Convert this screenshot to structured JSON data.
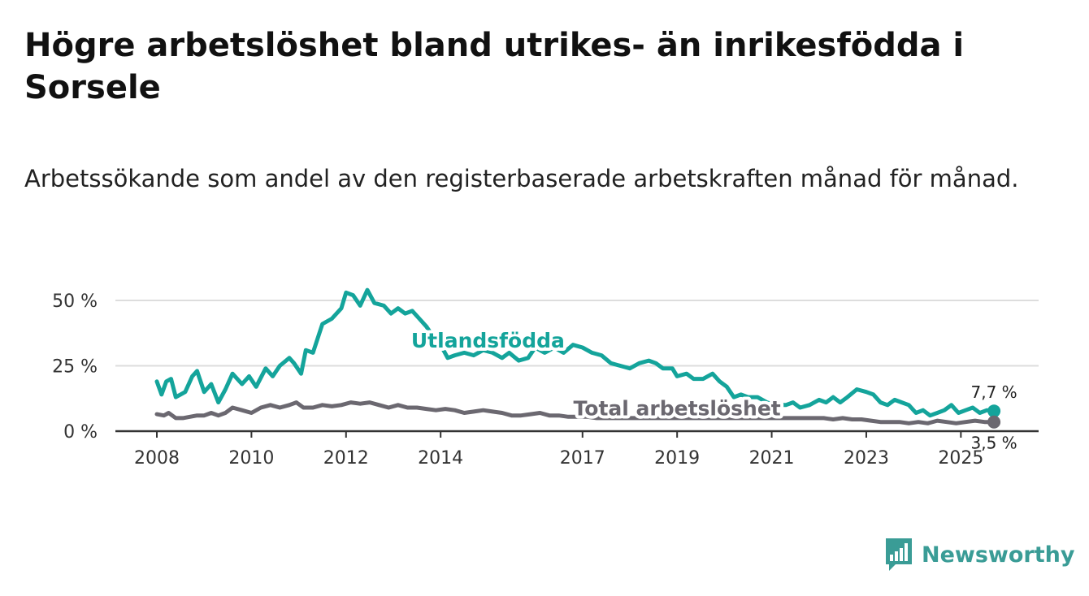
{
  "header": {
    "title": "Högre arbetslöshet bland utrikes- än inrikesfödda i Sorsele",
    "subtitle": "Arbetssökande som andel av den registerbaserade arbetskraften månad för månad."
  },
  "brand": {
    "name": "Newsworthy",
    "icon": "newsworthy-logo-icon",
    "color": "#3a9c96"
  },
  "chart_data": {
    "type": "line",
    "title": "Högre arbetslöshet bland utrikes- än inrikesfödda i Sorsele",
    "subtitle": "Arbetssökande som andel av den registerbaserade arbetskraften månad för månad.",
    "xlabel": "",
    "ylabel": "",
    "xlim": [
      2008,
      2025.75
    ],
    "ylim": [
      0,
      55
    ],
    "grid": true,
    "x_ticks": [
      2008,
      2010,
      2012,
      2014,
      2017,
      2019,
      2021,
      2023,
      2025
    ],
    "y_ticks": [
      {
        "value": 0,
        "label": "0 %"
      },
      {
        "value": 25,
        "label": "25 %"
      },
      {
        "value": 50,
        "label": "50 %"
      }
    ],
    "series": [
      {
        "name": "Utlandsfödda",
        "color": "#14a49b",
        "points": [
          [
            2008.0,
            19
          ],
          [
            2008.1,
            14
          ],
          [
            2008.2,
            19
          ],
          [
            2008.3,
            20
          ],
          [
            2008.4,
            13
          ],
          [
            2008.5,
            14
          ],
          [
            2008.6,
            15
          ],
          [
            2008.75,
            21
          ],
          [
            2008.85,
            23
          ],
          [
            2009.0,
            15
          ],
          [
            2009.15,
            18
          ],
          [
            2009.3,
            11
          ],
          [
            2009.45,
            16
          ],
          [
            2009.6,
            22
          ],
          [
            2009.8,
            18
          ],
          [
            2009.95,
            21
          ],
          [
            2010.1,
            17
          ],
          [
            2010.3,
            24
          ],
          [
            2010.45,
            21
          ],
          [
            2010.6,
            25
          ],
          [
            2010.8,
            28
          ],
          [
            2010.9,
            26
          ],
          [
            2011.05,
            22
          ],
          [
            2011.15,
            31
          ],
          [
            2011.3,
            30
          ],
          [
            2011.5,
            41
          ],
          [
            2011.7,
            43
          ],
          [
            2011.9,
            47
          ],
          [
            2012.0,
            53
          ],
          [
            2012.15,
            52
          ],
          [
            2012.3,
            48
          ],
          [
            2012.45,
            54
          ],
          [
            2012.6,
            49
          ],
          [
            2012.8,
            48
          ],
          [
            2012.95,
            45
          ],
          [
            2013.1,
            47
          ],
          [
            2013.25,
            45
          ],
          [
            2013.4,
            46
          ],
          [
            2013.55,
            43
          ],
          [
            2013.7,
            40
          ],
          [
            2013.85,
            36
          ],
          [
            2014.0,
            33
          ],
          [
            2014.15,
            28
          ],
          [
            2014.3,
            29
          ],
          [
            2014.5,
            30
          ],
          [
            2014.7,
            29
          ],
          [
            2014.9,
            31
          ],
          [
            2015.1,
            30
          ],
          [
            2015.3,
            28
          ],
          [
            2015.45,
            30
          ],
          [
            2015.65,
            27
          ],
          [
            2015.85,
            28
          ],
          [
            2016.0,
            32
          ],
          [
            2016.2,
            30
          ],
          [
            2016.4,
            32
          ],
          [
            2016.6,
            30
          ],
          [
            2016.8,
            33
          ],
          [
            2017.0,
            32
          ],
          [
            2017.2,
            30
          ],
          [
            2017.4,
            29
          ],
          [
            2017.6,
            26
          ],
          [
            2017.8,
            25
          ],
          [
            2018.0,
            24
          ],
          [
            2018.2,
            26
          ],
          [
            2018.4,
            27
          ],
          [
            2018.55,
            26
          ],
          [
            2018.7,
            24
          ],
          [
            2018.9,
            24
          ],
          [
            2019.0,
            21
          ],
          [
            2019.2,
            22
          ],
          [
            2019.35,
            20
          ],
          [
            2019.55,
            20
          ],
          [
            2019.75,
            22
          ],
          [
            2019.9,
            19
          ],
          [
            2020.05,
            17
          ],
          [
            2020.2,
            13
          ],
          [
            2020.35,
            14
          ],
          [
            2020.5,
            13
          ],
          [
            2020.7,
            13
          ],
          [
            2020.9,
            11
          ],
          [
            2021.1,
            10
          ],
          [
            2021.3,
            10
          ],
          [
            2021.45,
            11
          ],
          [
            2021.6,
            9
          ],
          [
            2021.8,
            10
          ],
          [
            2022.0,
            12
          ],
          [
            2022.15,
            11
          ],
          [
            2022.3,
            13
          ],
          [
            2022.45,
            11
          ],
          [
            2022.6,
            13
          ],
          [
            2022.8,
            16
          ],
          [
            2023.0,
            15
          ],
          [
            2023.15,
            14
          ],
          [
            2023.3,
            11
          ],
          [
            2023.45,
            10
          ],
          [
            2023.6,
            12
          ],
          [
            2023.75,
            11
          ],
          [
            2023.9,
            10
          ],
          [
            2024.05,
            7
          ],
          [
            2024.2,
            8
          ],
          [
            2024.35,
            6
          ],
          [
            2024.5,
            7
          ],
          [
            2024.65,
            8
          ],
          [
            2024.8,
            10
          ],
          [
            2024.95,
            7
          ],
          [
            2025.1,
            8
          ],
          [
            2025.25,
            9
          ],
          [
            2025.4,
            7
          ],
          [
            2025.55,
            8
          ],
          [
            2025.7,
            7.7
          ]
        ],
        "end_value": 7.7,
        "end_label": "7,7 %",
        "label_at": [
          2015.0,
          32
        ]
      },
      {
        "name": "Total arbetslöshet",
        "color": "#6b6870",
        "points": [
          [
            2008.0,
            6.5
          ],
          [
            2008.15,
            6
          ],
          [
            2008.25,
            7
          ],
          [
            2008.4,
            5
          ],
          [
            2008.55,
            5
          ],
          [
            2008.7,
            5.5
          ],
          [
            2008.85,
            6
          ],
          [
            2009.0,
            6
          ],
          [
            2009.15,
            7
          ],
          [
            2009.3,
            6
          ],
          [
            2009.45,
            7
          ],
          [
            2009.6,
            9
          ],
          [
            2009.8,
            8
          ],
          [
            2010.0,
            7
          ],
          [
            2010.2,
            9
          ],
          [
            2010.4,
            10
          ],
          [
            2010.6,
            9
          ],
          [
            2010.8,
            10
          ],
          [
            2010.95,
            11
          ],
          [
            2011.1,
            9
          ],
          [
            2011.3,
            9
          ],
          [
            2011.5,
            10
          ],
          [
            2011.7,
            9.5
          ],
          [
            2011.9,
            10
          ],
          [
            2012.1,
            11
          ],
          [
            2012.3,
            10.5
          ],
          [
            2012.5,
            11
          ],
          [
            2012.7,
            10
          ],
          [
            2012.9,
            9
          ],
          [
            2013.1,
            10
          ],
          [
            2013.3,
            9
          ],
          [
            2013.5,
            9
          ],
          [
            2013.7,
            8.5
          ],
          [
            2013.9,
            8
          ],
          [
            2014.1,
            8.5
          ],
          [
            2014.3,
            8
          ],
          [
            2014.5,
            7
          ],
          [
            2014.7,
            7.5
          ],
          [
            2014.9,
            8
          ],
          [
            2015.1,
            7.5
          ],
          [
            2015.3,
            7
          ],
          [
            2015.5,
            6
          ],
          [
            2015.7,
            6
          ],
          [
            2015.9,
            6.5
          ],
          [
            2016.1,
            7
          ],
          [
            2016.3,
            6
          ],
          [
            2016.5,
            6
          ],
          [
            2016.7,
            5.5
          ],
          [
            2016.9,
            5.5
          ],
          [
            2017.1,
            5.5
          ],
          [
            2017.3,
            5
          ],
          [
            2017.5,
            5
          ],
          [
            2017.7,
            5
          ],
          [
            2017.9,
            5
          ],
          [
            2018.2,
            5
          ],
          [
            2018.5,
            5
          ],
          [
            2018.8,
            5
          ],
          [
            2019.1,
            5
          ],
          [
            2019.4,
            5
          ],
          [
            2019.7,
            5
          ],
          [
            2020.0,
            5
          ],
          [
            2020.3,
            5
          ],
          [
            2020.6,
            5
          ],
          [
            2020.9,
            5
          ],
          [
            2021.2,
            5
          ],
          [
            2021.5,
            5
          ],
          [
            2021.8,
            5
          ],
          [
            2022.1,
            5
          ],
          [
            2022.3,
            4.5
          ],
          [
            2022.5,
            5
          ],
          [
            2022.7,
            4.5
          ],
          [
            2022.9,
            4.5
          ],
          [
            2023.1,
            4
          ],
          [
            2023.3,
            3.5
          ],
          [
            2023.5,
            3.5
          ],
          [
            2023.7,
            3.5
          ],
          [
            2023.9,
            3
          ],
          [
            2024.1,
            3.5
          ],
          [
            2024.3,
            3
          ],
          [
            2024.5,
            4
          ],
          [
            2024.7,
            3.5
          ],
          [
            2024.9,
            3
          ],
          [
            2025.1,
            3.5
          ],
          [
            2025.3,
            4
          ],
          [
            2025.5,
            3.5
          ],
          [
            2025.7,
            3.5
          ]
        ],
        "end_value": 3.5,
        "end_label": "3,5 %",
        "label_at": [
          2019.0,
          6
        ]
      }
    ]
  }
}
